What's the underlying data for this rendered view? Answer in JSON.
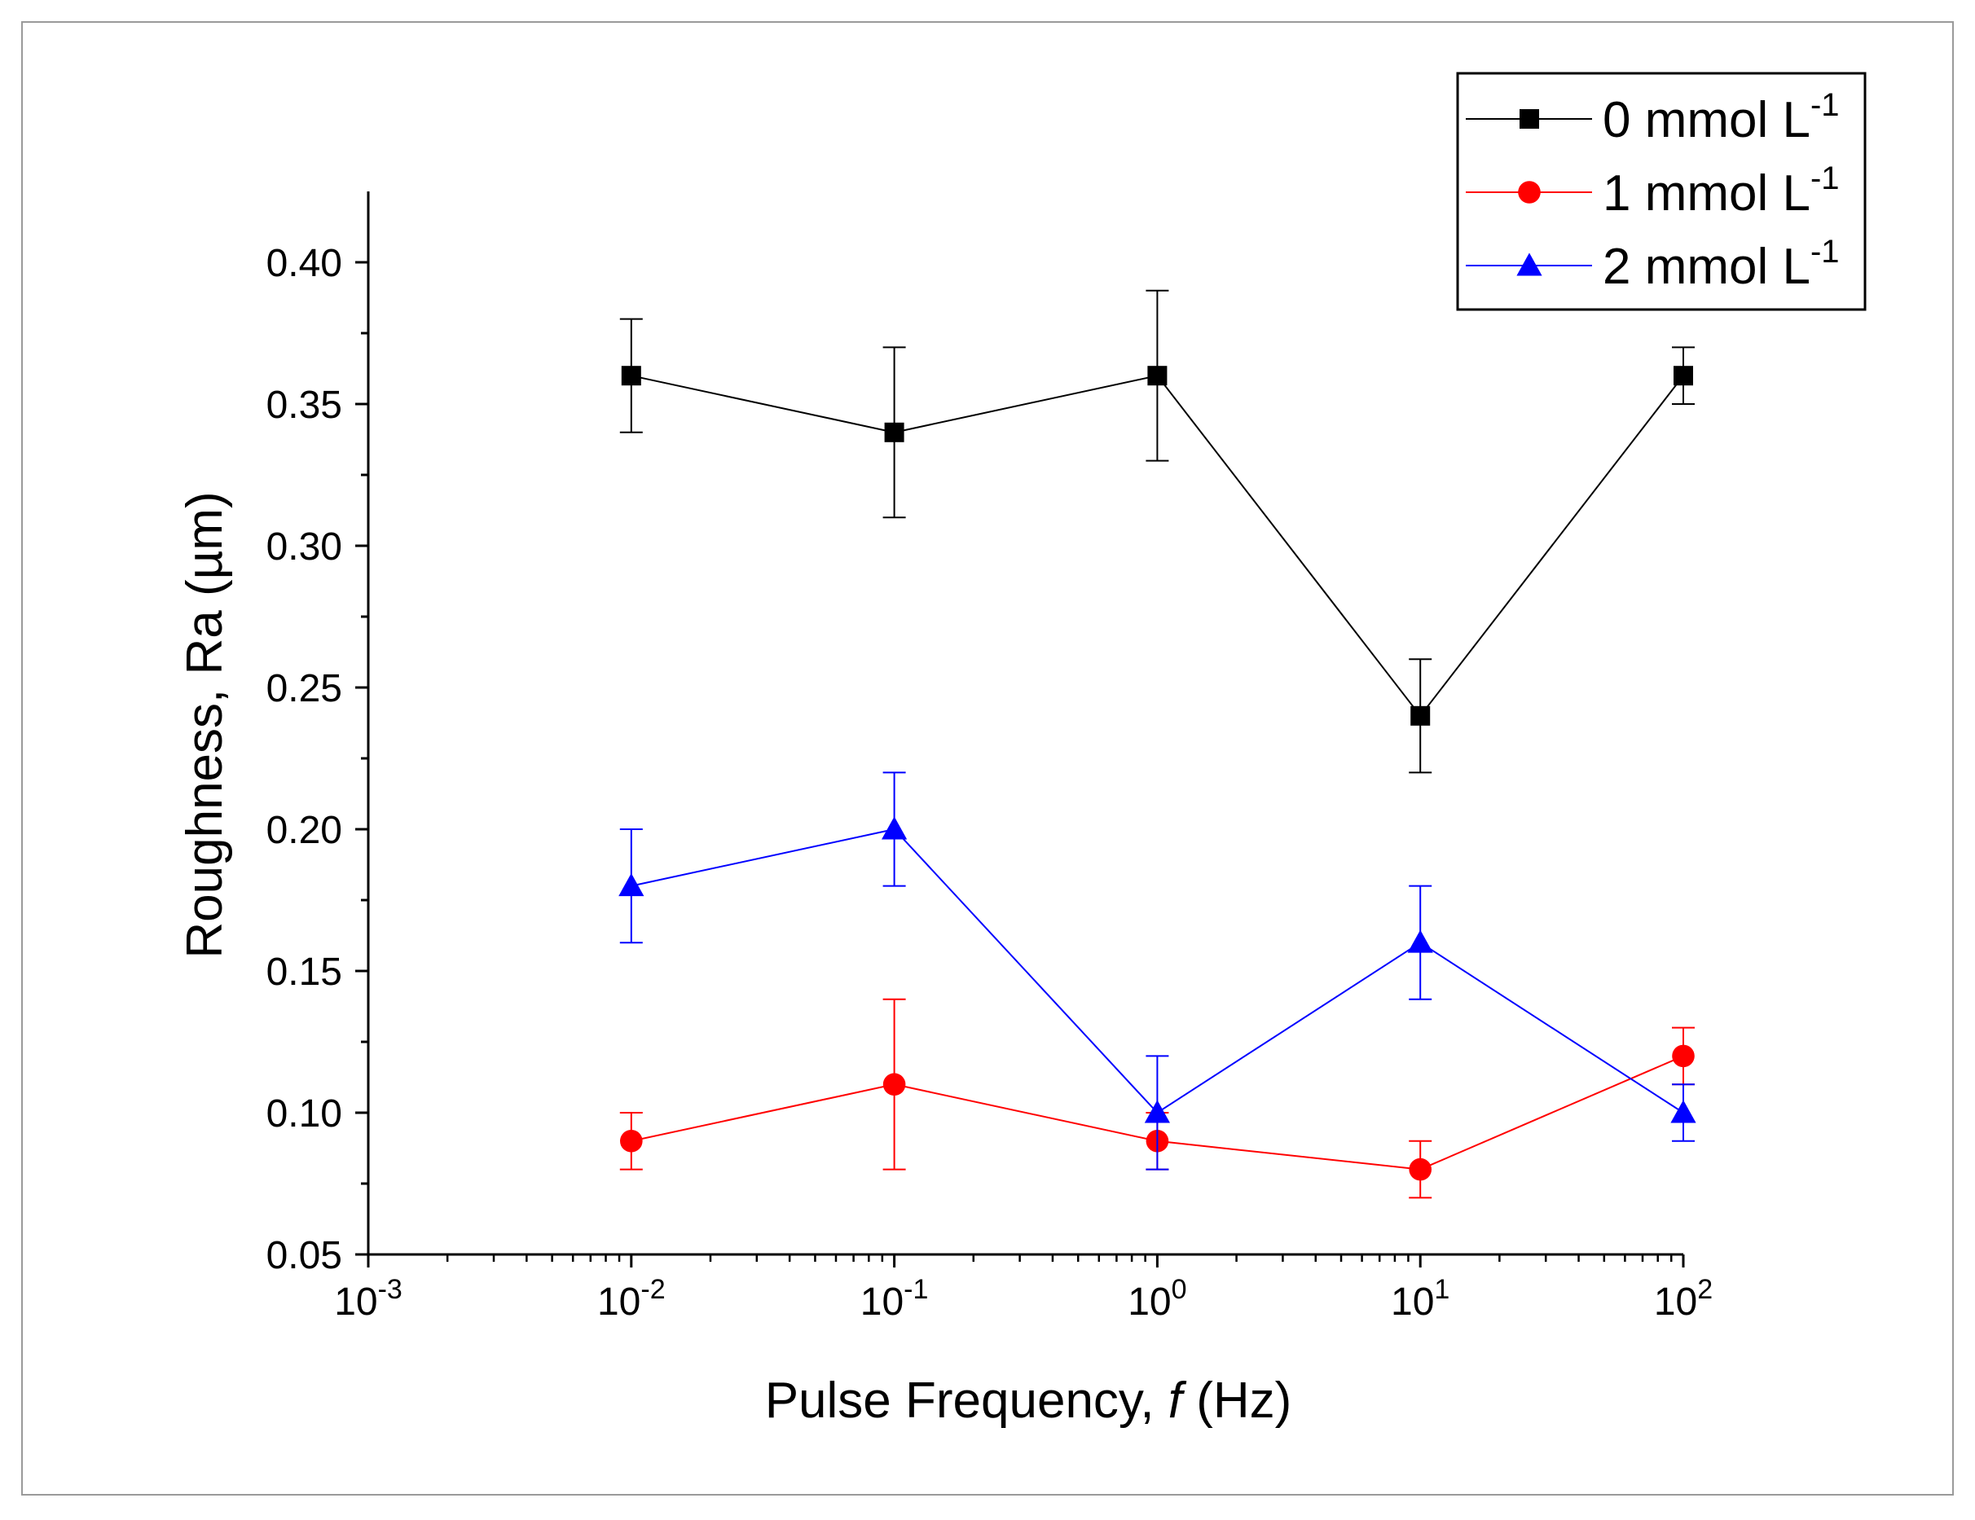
{
  "chart_data": {
    "type": "line",
    "xlabel_parts": [
      "Pulse Frequency, ",
      "f",
      " (Hz)"
    ],
    "ylabel": "Roughness, Ra (µm)",
    "x_scale": "log",
    "xlim": [
      0.001,
      100
    ],
    "ylim": [
      0.05,
      0.425
    ],
    "x_ticks": [
      {
        "value": 0.001,
        "base": "10",
        "exp": "-3"
      },
      {
        "value": 0.01,
        "base": "10",
        "exp": "-2"
      },
      {
        "value": 0.1,
        "base": "10",
        "exp": "-1"
      },
      {
        "value": 1,
        "base": "10",
        "exp": "0"
      },
      {
        "value": 10,
        "base": "10",
        "exp": "1"
      },
      {
        "value": 100,
        "base": "10",
        "exp": "2"
      }
    ],
    "y_ticks": [
      {
        "value": 0.05,
        "label": "0.05"
      },
      {
        "value": 0.1,
        "label": "0.10"
      },
      {
        "value": 0.15,
        "label": "0.15"
      },
      {
        "value": 0.2,
        "label": "0.20"
      },
      {
        "value": 0.25,
        "label": "0.25"
      },
      {
        "value": 0.3,
        "label": "0.30"
      },
      {
        "value": 0.35,
        "label": "0.35"
      },
      {
        "value": 0.4,
        "label": "0.40"
      }
    ],
    "legend_position": "top-right",
    "grid": false,
    "x": [
      0.01,
      0.1,
      1,
      10,
      100
    ],
    "series": [
      {
        "name": "0 mmol L",
        "name_sup": "-1",
        "color": "#000000",
        "marker": "square",
        "values": [
          0.36,
          0.34,
          0.36,
          0.24,
          0.36
        ],
        "error": [
          0.02,
          0.03,
          0.03,
          0.02,
          0.01
        ]
      },
      {
        "name": "1 mmol L",
        "name_sup": "-1",
        "color": "#ff0000",
        "marker": "circle",
        "values": [
          0.09,
          0.11,
          0.09,
          0.08,
          0.12
        ],
        "error": [
          0.01,
          0.03,
          0.01,
          0.01,
          0.01
        ]
      },
      {
        "name": "2 mmol L",
        "name_sup": "-1",
        "color": "#0000ff",
        "marker": "triangle",
        "values": [
          0.18,
          0.2,
          0.1,
          0.16,
          0.1
        ],
        "error": [
          0.02,
          0.02,
          0.02,
          0.02,
          0.01
        ]
      }
    ]
  }
}
